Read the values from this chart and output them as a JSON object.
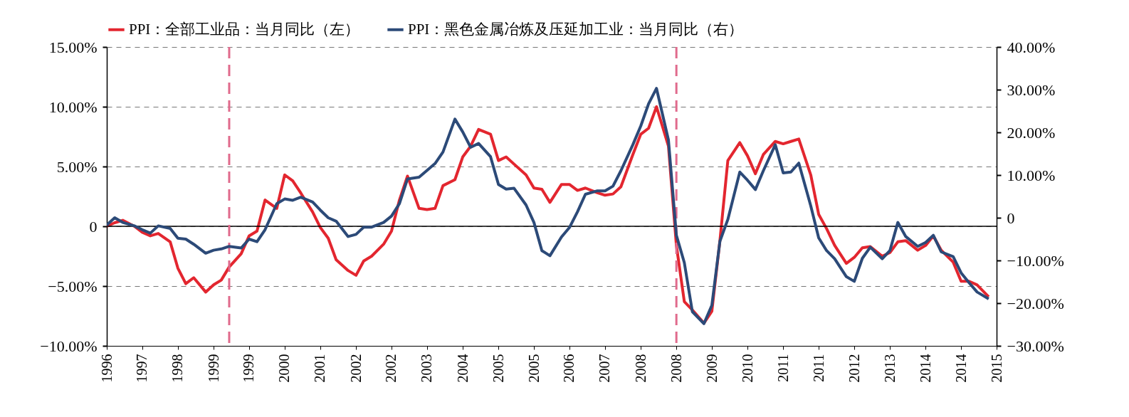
{
  "chart_data": {
    "type": "line",
    "x": [
      "1996-10",
      "1996-12",
      "1997-02",
      "1997-05",
      "1997-07",
      "1997-09",
      "1997-11",
      "1998-02",
      "1998-04",
      "1998-06",
      "1998-08",
      "1998-11",
      "1999-01",
      "1999-03",
      "1999-05",
      "1999-08",
      "1999-10",
      "1999-12",
      "2000-02",
      "2000-05",
      "2000-07",
      "2000-09",
      "2000-11",
      "2001-02",
      "2001-04",
      "2001-06",
      "2001-08",
      "2001-11",
      "2002-01",
      "2002-03",
      "2002-05",
      "2002-08",
      "2002-10",
      "2002-12",
      "2003-02",
      "2003-05",
      "2003-07",
      "2003-09",
      "2003-11",
      "2004-02",
      "2004-04",
      "2004-06",
      "2004-08",
      "2004-11",
      "2005-01",
      "2005-03",
      "2005-05",
      "2005-08",
      "2005-10",
      "2005-12",
      "2006-02",
      "2006-05",
      "2006-07",
      "2006-09",
      "2006-11",
      "2007-02",
      "2007-04",
      "2007-06",
      "2007-08",
      "2007-11",
      "2008-01",
      "2008-03",
      "2008-05",
      "2008-08",
      "2008-10",
      "2008-12",
      "2009-02",
      "2009-05",
      "2009-07",
      "2009-09",
      "2009-11",
      "2010-02",
      "2010-04",
      "2010-06",
      "2010-08",
      "2010-11",
      "2011-01",
      "2011-03",
      "2011-05",
      "2011-08",
      "2011-10",
      "2011-12",
      "2012-02",
      "2012-05",
      "2012-07",
      "2012-09",
      "2012-11",
      "2013-02",
      "2013-04",
      "2013-06",
      "2013-08",
      "2013-11",
      "2014-01",
      "2014-03",
      "2014-05",
      "2014-08",
      "2014-10",
      "2014-12",
      "2015-02",
      "2015-05"
    ],
    "xlim": [
      "1996-10",
      "2015-07"
    ],
    "xticks": [
      {
        "value": "1996-10",
        "label": "1996"
      },
      {
        "value": "1997-07",
        "label": "1997"
      },
      {
        "value": "1998-04",
        "label": "1998"
      },
      {
        "value": "1999-01",
        "label": "1999"
      },
      {
        "value": "1999-10",
        "label": "1999"
      },
      {
        "value": "2000-07",
        "label": "2000"
      },
      {
        "value": "2001-04",
        "label": "2001"
      },
      {
        "value": "2002-01",
        "label": "2002"
      },
      {
        "value": "2002-10",
        "label": "2002"
      },
      {
        "value": "2003-07",
        "label": "2003"
      },
      {
        "value": "2004-04",
        "label": "2004"
      },
      {
        "value": "2005-01",
        "label": "2005"
      },
      {
        "value": "2005-10",
        "label": "2005"
      },
      {
        "value": "2006-07",
        "label": "2006"
      },
      {
        "value": "2007-04",
        "label": "2007"
      },
      {
        "value": "2008-01",
        "label": "2008"
      },
      {
        "value": "2008-10",
        "label": "2008"
      },
      {
        "value": "2009-07",
        "label": "2009"
      },
      {
        "value": "2010-04",
        "label": "2010"
      },
      {
        "value": "2011-01",
        "label": "2011"
      },
      {
        "value": "2011-10",
        "label": "2011"
      },
      {
        "value": "2012-07",
        "label": "2012"
      },
      {
        "value": "2013-04",
        "label": "2013"
      },
      {
        "value": "2014-01",
        "label": "2014"
      },
      {
        "value": "2014-10",
        "label": "2014"
      },
      {
        "value": "2015-07",
        "label": "2015"
      }
    ],
    "ylim": [
      -10,
      15
    ],
    "yticks": [
      {
        "value": -10,
        "label": "−10.00%"
      },
      {
        "value": -5,
        "label": "−5.00%"
      },
      0,
      {
        "value": 5,
        "label": "5.00%"
      },
      {
        "value": 10,
        "label": "10.00%"
      },
      {
        "value": 15,
        "label": "15.00%"
      }
    ],
    "y2lim": [
      -30,
      40
    ],
    "y2ticks": [
      {
        "value": -30,
        "label": "−30.00%"
      },
      {
        "value": -20,
        "label": "−20.00%"
      },
      {
        "value": -10,
        "label": "−10.00%"
      },
      0,
      {
        "value": 10,
        "label": "10.00%"
      },
      {
        "value": 20,
        "label": "20.00%"
      },
      {
        "value": 30,
        "label": "30.00%"
      },
      {
        "value": 40,
        "label": "40.00%"
      }
    ],
    "grid": "y",
    "legend": "top",
    "series": [
      {
        "name": "PPI：全部工业品：当月同比（左）",
        "color": "#e3262f",
        "values": [
          0.0,
          0.3,
          0.5,
          0.0,
          -0.5,
          -0.8,
          -0.6,
          -1.3,
          -3.5,
          -4.8,
          -4.3,
          -5.5,
          -4.9,
          -4.5,
          -3.4,
          -2.3,
          -0.8,
          -0.4,
          2.2,
          1.5,
          4.3,
          3.8,
          2.8,
          1.2,
          -0.1,
          -1.0,
          -2.8,
          -3.7,
          -4.1,
          -2.9,
          -2.5,
          -1.5,
          -0.4,
          2.2,
          4.2,
          1.5,
          1.4,
          1.5,
          3.4,
          3.9,
          5.8,
          6.7,
          8.1,
          7.7,
          5.5,
          5.8,
          5.2,
          4.3,
          3.2,
          3.1,
          2.0,
          3.5,
          3.5,
          3.0,
          3.2,
          2.8,
          2.6,
          2.7,
          3.3,
          6.0,
          7.7,
          8.2,
          10.0,
          6.7,
          -1.6,
          -6.3,
          -7.0,
          -8.1,
          -7.1,
          -1.2,
          5.5,
          7.0,
          5.9,
          4.4,
          6.0,
          7.1,
          6.9,
          7.1,
          7.3,
          4.3,
          1.0,
          -0.2,
          -1.6,
          -3.1,
          -2.6,
          -1.8,
          -1.7,
          -2.5,
          -2.2,
          -1.3,
          -1.2,
          -2.0,
          -1.6,
          -0.8,
          -2.0,
          -3.0,
          -4.6,
          -4.6,
          -4.9,
          -5.9
        ]
      },
      {
        "name": "PPI：黑色金属冶炼及压延加工业：当月同比（右）",
        "color": "#2c4a78",
        "axis": "y2",
        "values": [
          -1.7,
          0.0,
          -1.1,
          -1.9,
          -2.8,
          -3.6,
          -1.9,
          -2.5,
          -4.8,
          -5.0,
          -6.2,
          -8.3,
          -7.6,
          -7.3,
          -6.7,
          -7.1,
          -5.0,
          -5.6,
          -2.8,
          3.3,
          4.4,
          4.1,
          4.8,
          3.7,
          1.8,
          0.0,
          -0.8,
          -4.4,
          -3.9,
          -2.2,
          -2.2,
          -1.1,
          0.4,
          3.3,
          9.1,
          9.5,
          11.1,
          12.7,
          15.4,
          23.1,
          20.1,
          16.5,
          17.4,
          14.3,
          7.8,
          6.7,
          6.9,
          3.0,
          -1.1,
          -7.7,
          -8.9,
          -4.5,
          -2.3,
          1.4,
          5.5,
          6.3,
          6.3,
          7.4,
          11.0,
          17.1,
          21.5,
          26.7,
          30.3,
          18.2,
          -4.1,
          -10.5,
          -22.0,
          -24.8,
          -20.5,
          -5.5,
          -0.4,
          10.7,
          8.8,
          6.6,
          11.0,
          17.1,
          10.5,
          10.7,
          12.8,
          2.8,
          -4.7,
          -7.7,
          -9.6,
          -13.8,
          -14.9,
          -9.5,
          -6.9,
          -9.6,
          -7.7,
          -1.1,
          -4.4,
          -6.7,
          -5.8,
          -4.1,
          -8.0,
          -9.1,
          -12.9,
          -15.2,
          -17.4,
          -19.0
        ]
      }
    ],
    "ref_lines": [
      {
        "axis": "y",
        "value": 0,
        "color": "#000000",
        "line_style": "solid"
      },
      {
        "axis": "x",
        "value": "1999-05",
        "color": "#e06a8c",
        "line_style": "dashed"
      },
      {
        "axis": "x",
        "value": "2008-10",
        "color": "#e06a8c",
        "line_style": "dashed"
      }
    ]
  }
}
